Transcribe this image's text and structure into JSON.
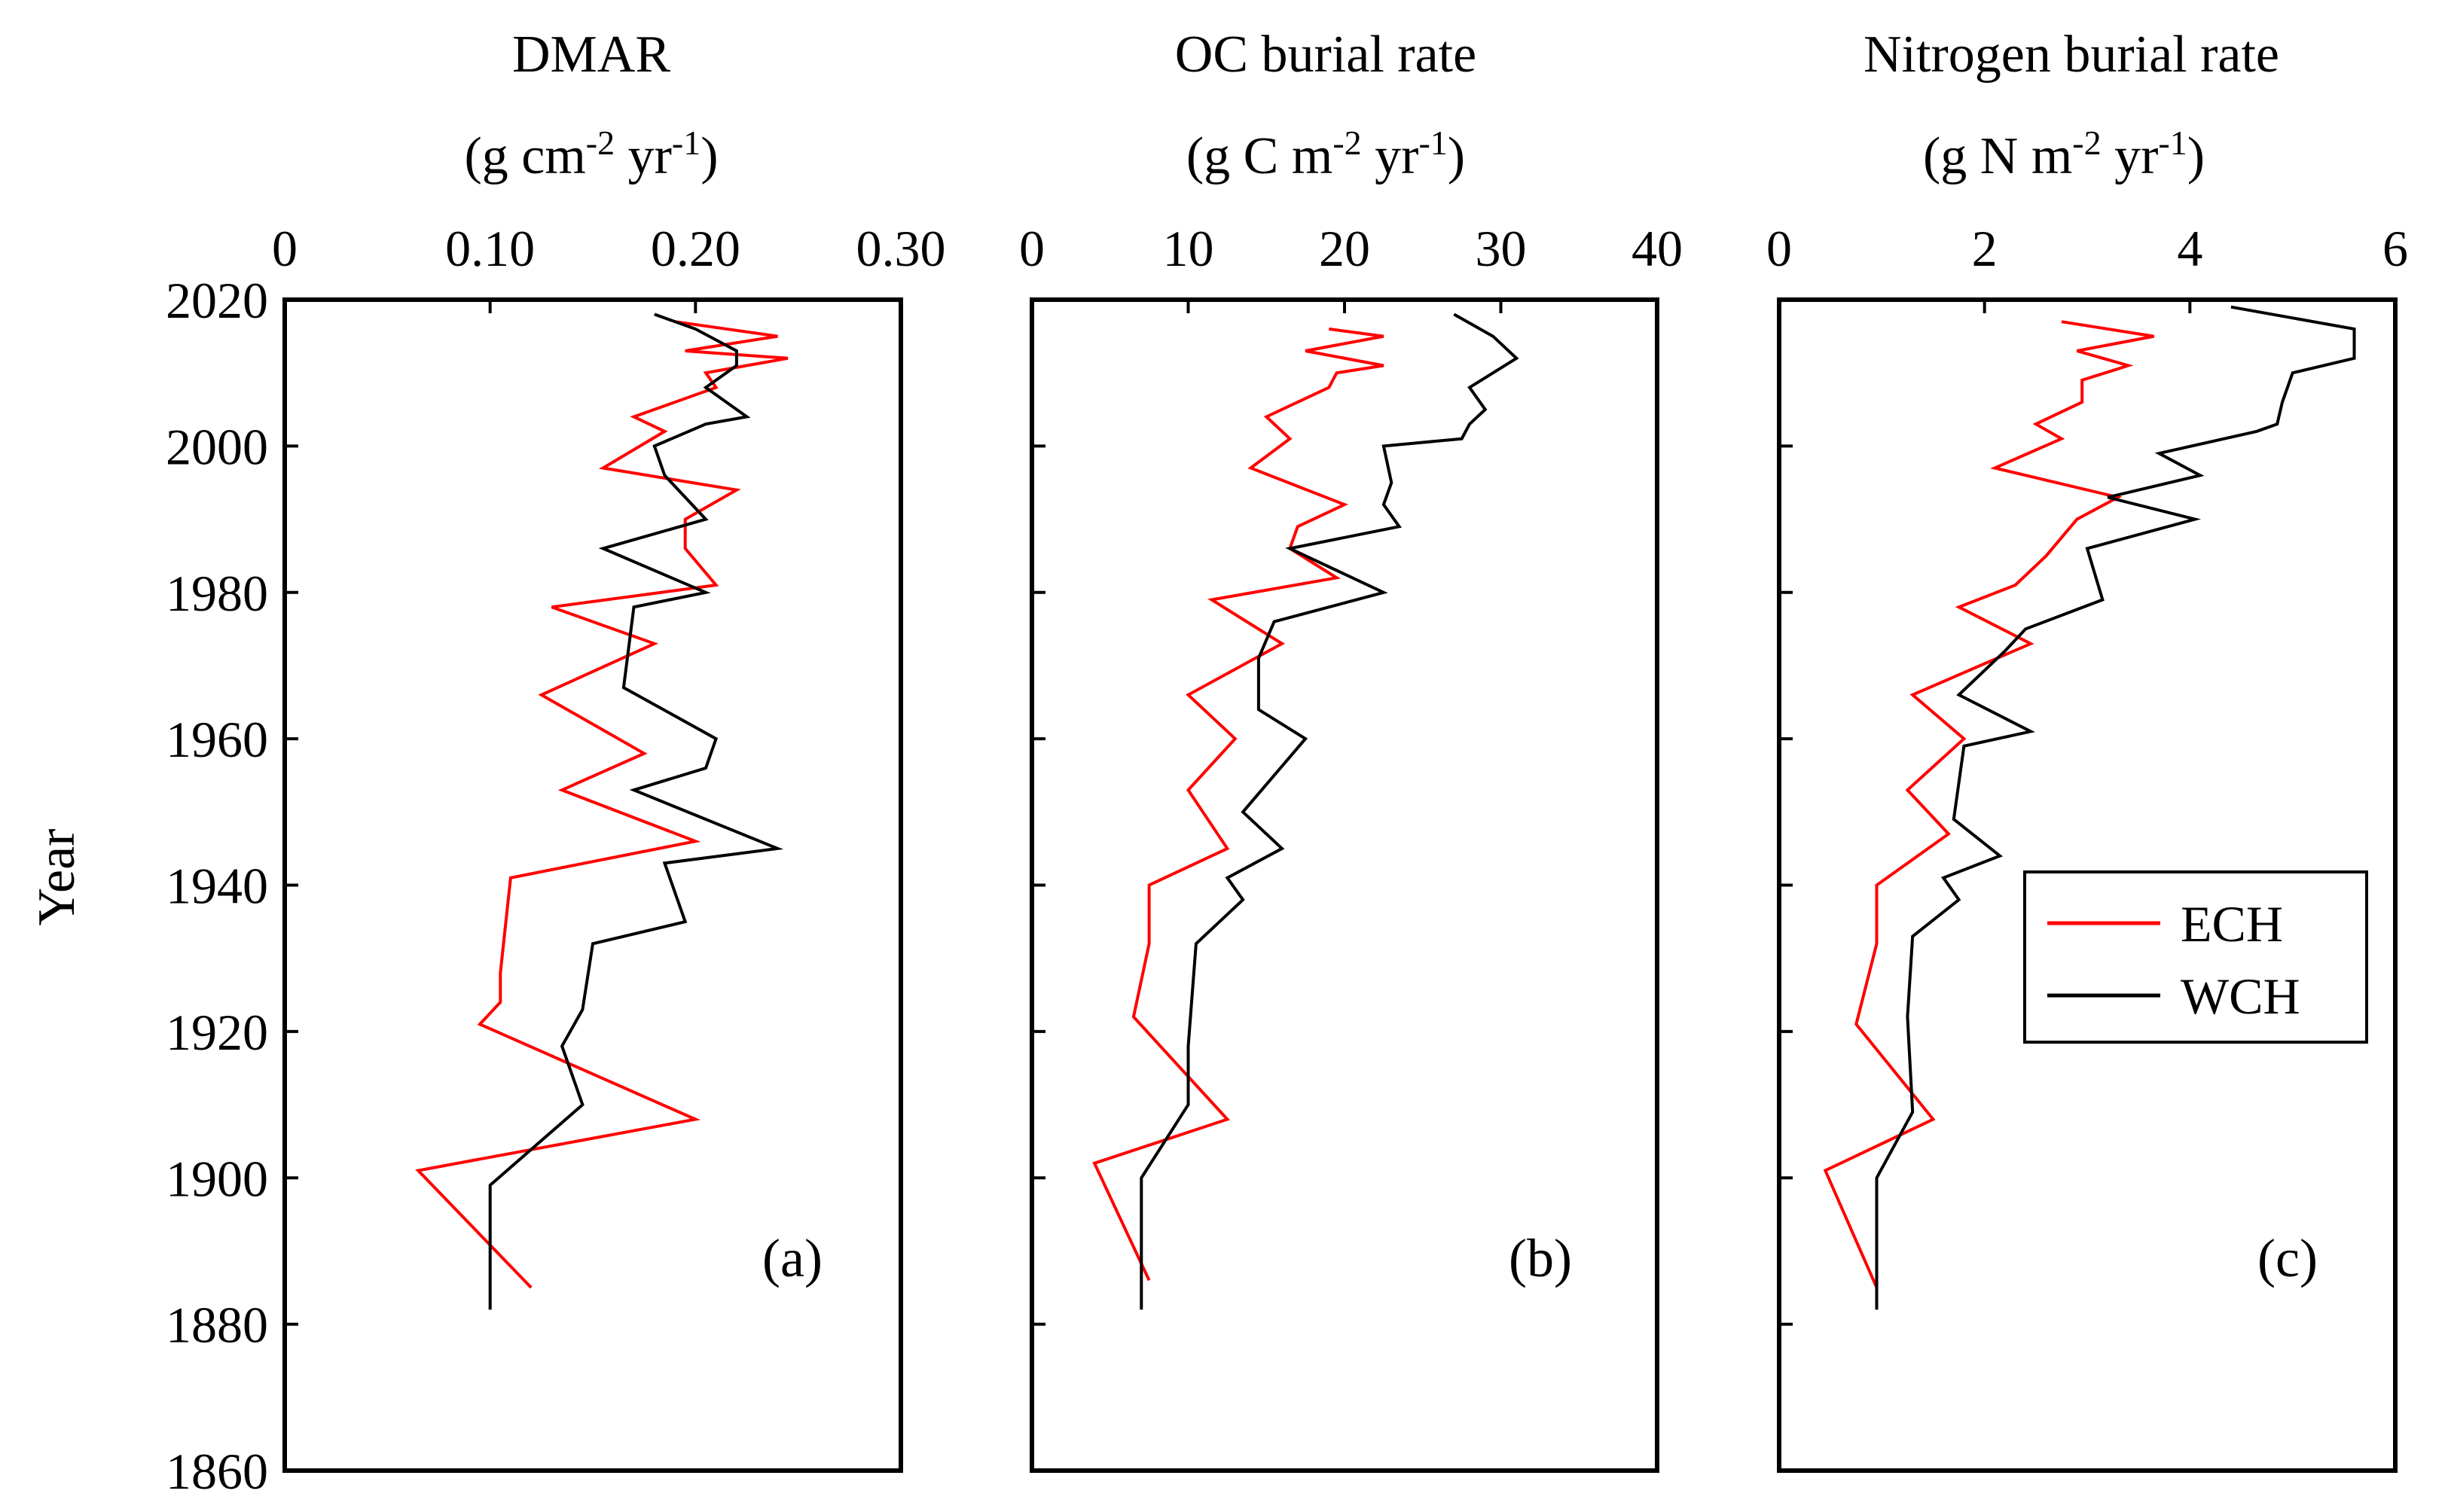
{
  "figure": {
    "y_axis_label": "Year",
    "colors": {
      "ECH": "#ff0000",
      "WCH": "#000000",
      "axes": "#000000"
    }
  },
  "chart_data": [
    {
      "type": "line",
      "panel_label": "(a)",
      "title": "DMAR",
      "unit_parts": [
        "(g cm",
        "-2",
        " yr",
        "-1",
        ")"
      ],
      "xlabel": "DMAR (g cm-2 yr-1)",
      "ylabel": "Year",
      "xlim": [
        0,
        0.3
      ],
      "ylim": [
        1860,
        2020
      ],
      "y_reversed": true,
      "x_ticks": [
        0,
        0.1,
        0.2,
        0.3
      ],
      "x_tick_labels": [
        "0",
        "0.10",
        "0.20",
        "0.30"
      ],
      "y_ticks": [
        2020,
        2000,
        1980,
        1960,
        1940,
        1920,
        1900,
        1880,
        1860
      ],
      "y_tick_labels": [
        "2020",
        "2000",
        "1980",
        "1960",
        "1940",
        "1920",
        "1900",
        "1880",
        "1860"
      ],
      "show_y_labels": true,
      "series": [
        {
          "name": "ECH",
          "color": "#ff0000",
          "points": [
            [
              0.19,
              2017
            ],
            [
              0.24,
              2015
            ],
            [
              0.195,
              2013
            ],
            [
              0.245,
              2012
            ],
            [
              0.205,
              2010
            ],
            [
              0.21,
              2008
            ],
            [
              0.17,
              2004
            ],
            [
              0.185,
              2002
            ],
            [
              0.155,
              1997
            ],
            [
              0.22,
              1994
            ],
            [
              0.195,
              1990
            ],
            [
              0.195,
              1986
            ],
            [
              0.21,
              1981
            ],
            [
              0.13,
              1978
            ],
            [
              0.18,
              1973
            ],
            [
              0.125,
              1966
            ],
            [
              0.175,
              1958
            ],
            [
              0.135,
              1953
            ],
            [
              0.2,
              1946
            ],
            [
              0.11,
              1941
            ],
            [
              0.105,
              1928
            ],
            [
              0.105,
              1924
            ],
            [
              0.095,
              1921
            ],
            [
              0.2,
              1908
            ],
            [
              0.065,
              1901
            ],
            [
              0.12,
              1885
            ]
          ]
        },
        {
          "name": "WCH",
          "color": "#000000",
          "points": [
            [
              0.18,
              2018
            ],
            [
              0.2,
              2016
            ],
            [
              0.22,
              2013
            ],
            [
              0.22,
              2011
            ],
            [
              0.205,
              2008
            ],
            [
              0.225,
              2004
            ],
            [
              0.205,
              2003
            ],
            [
              0.18,
              2000
            ],
            [
              0.185,
              1996
            ],
            [
              0.205,
              1990
            ],
            [
              0.155,
              1986
            ],
            [
              0.205,
              1980
            ],
            [
              0.17,
              1978
            ],
            [
              0.165,
              1967
            ],
            [
              0.21,
              1960
            ],
            [
              0.205,
              1956
            ],
            [
              0.17,
              1953
            ],
            [
              0.24,
              1945
            ],
            [
              0.185,
              1943
            ],
            [
              0.195,
              1935
            ],
            [
              0.15,
              1932
            ],
            [
              0.145,
              1923
            ],
            [
              0.135,
              1918
            ],
            [
              0.145,
              1910
            ],
            [
              0.1,
              1899
            ],
            [
              0.1,
              1882
            ]
          ]
        }
      ]
    },
    {
      "type": "line",
      "panel_label": "(b)",
      "title": "OC burial rate",
      "unit_parts": [
        "(g C m",
        "-2",
        " yr",
        "-1",
        ")"
      ],
      "xlabel": "OC burial rate (g C m-2 yr-1)",
      "ylabel": "Year",
      "xlim": [
        0,
        40
      ],
      "ylim": [
        1860,
        2020
      ],
      "y_reversed": true,
      "x_ticks": [
        0,
        10,
        20,
        30,
        40
      ],
      "x_tick_labels": [
        "0",
        "10",
        "20",
        "30",
        "40"
      ],
      "y_ticks": [
        2020,
        2000,
        1980,
        1960,
        1940,
        1920,
        1900,
        1880,
        1860
      ],
      "y_tick_labels": [
        "2020",
        "2000",
        "1980",
        "1960",
        "1940",
        "1920",
        "1900",
        "1880",
        "1860"
      ],
      "show_y_labels": false,
      "series": [
        {
          "name": "ECH",
          "color": "#ff0000",
          "points": [
            [
              19,
              2016
            ],
            [
              22.5,
              2015
            ],
            [
              17.5,
              2013
            ],
            [
              22.5,
              2011
            ],
            [
              19.5,
              2010
            ],
            [
              19,
              2008
            ],
            [
              15,
              2004
            ],
            [
              16.5,
              2001
            ],
            [
              14,
              1997
            ],
            [
              20,
              1992
            ],
            [
              17,
              1989
            ],
            [
              16.5,
              1986
            ],
            [
              19.5,
              1982
            ],
            [
              11.5,
              1979
            ],
            [
              16,
              1973
            ],
            [
              10,
              1966
            ],
            [
              13,
              1960
            ],
            [
              10,
              1953
            ],
            [
              12.5,
              1945
            ],
            [
              7.5,
              1940
            ],
            [
              7.5,
              1932
            ],
            [
              6.5,
              1922
            ],
            [
              12.5,
              1908
            ],
            [
              4,
              1902
            ],
            [
              7.5,
              1886
            ]
          ]
        },
        {
          "name": "WCH",
          "color": "#000000",
          "points": [
            [
              27,
              2018
            ],
            [
              29.5,
              2015
            ],
            [
              31,
              2012
            ],
            [
              28,
              2008
            ],
            [
              29,
              2005
            ],
            [
              28,
              2003
            ],
            [
              27.5,
              2001
            ],
            [
              22.5,
              2000
            ],
            [
              23,
              1995
            ],
            [
              22.5,
              1992
            ],
            [
              23.5,
              1989
            ],
            [
              16.5,
              1986
            ],
            [
              22.5,
              1980
            ],
            [
              15.5,
              1976
            ],
            [
              14.5,
              1971
            ],
            [
              14.5,
              1964
            ],
            [
              17.5,
              1960
            ],
            [
              13.5,
              1950
            ],
            [
              16,
              1945
            ],
            [
              12.5,
              1941
            ],
            [
              13.5,
              1938
            ],
            [
              10.5,
              1932
            ],
            [
              10,
              1918
            ],
            [
              10,
              1910
            ],
            [
              7,
              1900
            ],
            [
              7,
              1882
            ]
          ]
        }
      ]
    },
    {
      "type": "line",
      "panel_label": "(c)",
      "title": "Nitrogen burial rate",
      "unit_parts": [
        "(g N m",
        "-2",
        " yr",
        "-1",
        ")"
      ],
      "xlabel": "Nitrogen burial rate (g N m-2 yr-1)",
      "ylabel": "Year",
      "xlim": [
        0,
        6
      ],
      "ylim": [
        1860,
        2020
      ],
      "y_reversed": true,
      "x_ticks": [
        0,
        2,
        4,
        6
      ],
      "x_tick_labels": [
        "0",
        "2",
        "4",
        "6"
      ],
      "y_ticks": [
        2020,
        2000,
        1980,
        1960,
        1940,
        1920,
        1900,
        1880,
        1860
      ],
      "y_tick_labels": [
        "2020",
        "2000",
        "1980",
        "1960",
        "1940",
        "1920",
        "1900",
        "1880",
        "1860"
      ],
      "show_y_labels": false,
      "series": [
        {
          "name": "ECH",
          "color": "#ff0000",
          "points": [
            [
              2.75,
              2017
            ],
            [
              3.65,
              2015
            ],
            [
              2.9,
              2013
            ],
            [
              3.4,
              2011
            ],
            [
              2.95,
              2009
            ],
            [
              2.95,
              2006
            ],
            [
              2.5,
              2003
            ],
            [
              2.75,
              2001
            ],
            [
              2.1,
              1997
            ],
            [
              3.3,
              1993
            ],
            [
              2.9,
              1990
            ],
            [
              2.6,
              1985
            ],
            [
              2.3,
              1981
            ],
            [
              1.75,
              1978
            ],
            [
              2.45,
              1973
            ],
            [
              1.3,
              1966
            ],
            [
              1.8,
              1960
            ],
            [
              1.25,
              1953
            ],
            [
              1.65,
              1947
            ],
            [
              0.95,
              1940
            ],
            [
              0.95,
              1932
            ],
            [
              0.75,
              1921
            ],
            [
              1.5,
              1908
            ],
            [
              0.45,
              1901
            ],
            [
              0.95,
              1885
            ]
          ]
        },
        {
          "name": "WCH",
          "color": "#000000",
          "points": [
            [
              4.4,
              2019
            ],
            [
              5.6,
              2016
            ],
            [
              5.6,
              2012
            ],
            [
              5,
              2010
            ],
            [
              4.9,
              2006
            ],
            [
              4.85,
              2003
            ],
            [
              4.65,
              2002
            ],
            [
              3.7,
              1999
            ],
            [
              4.1,
              1996
            ],
            [
              3.2,
              1993
            ],
            [
              4.05,
              1990
            ],
            [
              3,
              1986
            ],
            [
              3.15,
              1979
            ],
            [
              2.4,
              1975
            ],
            [
              2.2,
              1972
            ],
            [
              1.75,
              1966
            ],
            [
              2.45,
              1961
            ],
            [
              1.8,
              1959
            ],
            [
              1.7,
              1949
            ],
            [
              2.15,
              1944
            ],
            [
              1.6,
              1941
            ],
            [
              1.75,
              1938
            ],
            [
              1.3,
              1933
            ],
            [
              1.25,
              1922
            ],
            [
              1.3,
              1909
            ],
            [
              0.95,
              1900
            ],
            [
              0.95,
              1882
            ]
          ]
        }
      ]
    }
  ],
  "legend": {
    "placement": "bottom-right of panel (c)",
    "entries": [
      {
        "label": "ECH",
        "color": "#ff0000"
      },
      {
        "label": "WCH",
        "color": "#000000"
      }
    ]
  }
}
